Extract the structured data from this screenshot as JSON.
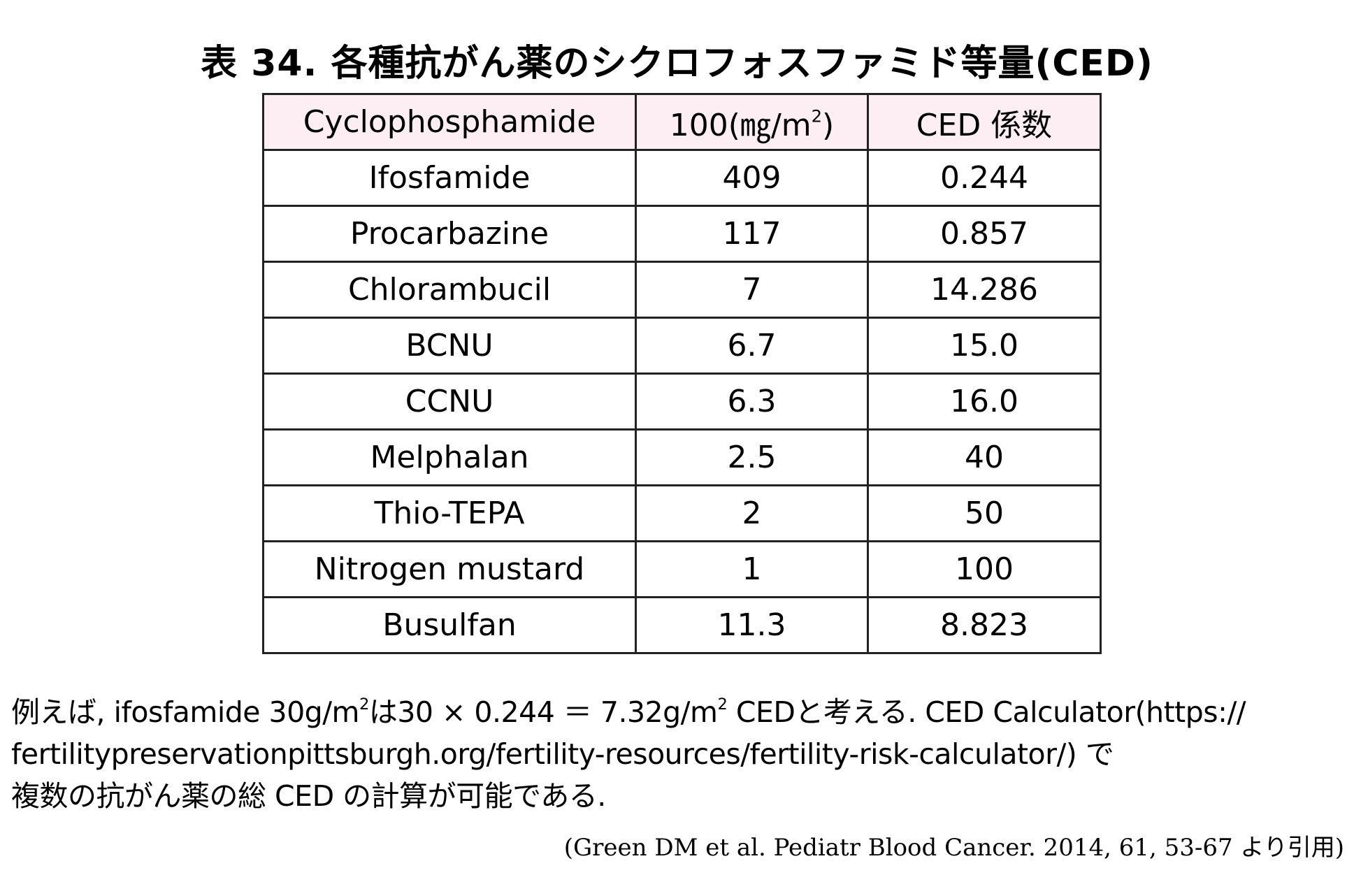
{
  "title": "表 34.  各種抗がん薬のシクロフォスファミド等量(CED)",
  "table": {
    "header": {
      "drug": "Cyclophosphamide",
      "dose": "100(㎎/m",
      "dose_sup": "2",
      "dose_end": ")",
      "ced": "CED 係数"
    },
    "rows": [
      [
        "Ifosfamide",
        "409",
        "0.244"
      ],
      [
        "Procarbazine",
        "117",
        "0.857"
      ],
      [
        "Chlorambucil",
        "7",
        "14.286"
      ],
      [
        "BCNU",
        "6.7",
        "15.0"
      ],
      [
        "CCNU",
        "6.3",
        "16.0"
      ],
      [
        "Melphalan",
        "2.5",
        "40"
      ],
      [
        "Thio-TEPA",
        "2",
        "50"
      ],
      [
        "Nitrogen mustard",
        "1",
        "100"
      ],
      [
        "Busulfan",
        "11.3",
        "8.823"
      ]
    ]
  },
  "note": {
    "line1": [
      "例えば, ifosfamide 30g/m",
      "2",
      "は30 × 0.244 ＝ 7.32g/m",
      "2",
      " CEDと考える. CED Calculator(https://"
    ],
    "line2": "fertilitypreservationpittsburgh.org/fertility-resources/fertility-risk-calculator/)  で",
    "line3": "複数の抗がん薬の総 CED の計算が可能である."
  },
  "citation": "(Green DM et al. Pediatr Blood Cancer. 2014, 61, 53-67 より引用)"
}
